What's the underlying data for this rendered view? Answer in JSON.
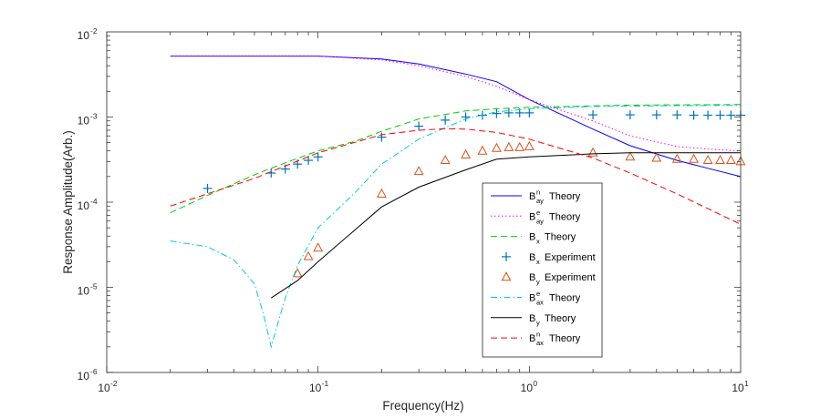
{
  "chart_data": {
    "type": "line",
    "title": "",
    "xlabel": "Frequency(Hz)",
    "ylabel": "Response Amplitude(Arb.)",
    "xscale": "log",
    "yscale": "log",
    "xlim": [
      0.01,
      10
    ],
    "ylim": [
      1e-06,
      0.01
    ],
    "grid": false,
    "legend_position": "lower-center",
    "x_ticks": [
      {
        "base": "10",
        "exp": "-2",
        "value": 0.01
      },
      {
        "base": "10",
        "exp": "-1",
        "value": 0.1
      },
      {
        "base": "10",
        "exp": "0",
        "value": 1
      },
      {
        "base": "10",
        "exp": "1",
        "value": 10
      }
    ],
    "y_ticks": [
      {
        "base": "10",
        "exp": "-6",
        "value": 1e-06
      },
      {
        "base": "10",
        "exp": "-5",
        "value": 1e-05
      },
      {
        "base": "10",
        "exp": "-4",
        "value": 0.0001
      },
      {
        "base": "10",
        "exp": "-3",
        "value": 0.001
      },
      {
        "base": "10",
        "exp": "-2",
        "value": 0.01
      }
    ],
    "series": [
      {
        "name": "B_ay^n Theory",
        "base": "B",
        "sup": "n",
        "sub": "ay",
        "suffix": "Theory",
        "style": "solid",
        "marker": "none",
        "color": "#0000ff",
        "x": [
          0.02,
          0.05,
          0.1,
          0.2,
          0.3,
          0.5,
          0.7,
          1,
          2,
          3,
          5,
          7,
          10
        ],
        "y": [
          0.0052,
          0.0052,
          0.0052,
          0.0048,
          0.0042,
          0.0032,
          0.0026,
          0.0016,
          0.00072,
          0.00046,
          0.00031,
          0.00025,
          0.0002
        ]
      },
      {
        "name": "B_ay^e Theory",
        "base": "B",
        "sup": "e",
        "sub": "ay",
        "suffix": "Theory",
        "style": "dotted",
        "marker": "none",
        "color": "#ff00ff",
        "x": [
          0.02,
          0.05,
          0.1,
          0.2,
          0.3,
          0.5,
          0.7,
          1,
          2,
          3,
          5,
          7,
          10
        ],
        "y": [
          0.0052,
          0.0052,
          0.0052,
          0.0047,
          0.004,
          0.003,
          0.0023,
          0.0016,
          0.0009,
          0.0006,
          0.00045,
          0.00042,
          0.0004
        ]
      },
      {
        "name": "B_x Theory",
        "base": "B",
        "sup": "",
        "sub": "x",
        "suffix": "Theory",
        "style": "dashed",
        "marker": "none",
        "color": "#00cc00",
        "x": [
          0.02,
          0.03,
          0.05,
          0.07,
          0.1,
          0.15,
          0.2,
          0.3,
          0.5,
          0.7,
          1,
          2,
          3,
          5,
          10
        ],
        "y": [
          7.5e-05,
          0.00012,
          0.00021,
          0.00029,
          0.0004,
          0.00052,
          0.00068,
          0.00095,
          0.00118,
          0.00125,
          0.0013,
          0.00135,
          0.00138,
          0.00139,
          0.0014
        ]
      },
      {
        "name": "B_x Experiment",
        "base": "B",
        "sup": "",
        "sub": "x",
        "suffix": "Experiment",
        "style": "none",
        "marker": "plus",
        "color": "#0072bd",
        "x": [
          0.03,
          0.06,
          0.07,
          0.08,
          0.09,
          0.1,
          0.2,
          0.3,
          0.4,
          0.5,
          0.6,
          0.7,
          0.8,
          0.9,
          1,
          2,
          3,
          4,
          5,
          6,
          7,
          8,
          9,
          10
        ],
        "y": [
          0.000145,
          0.00022,
          0.000245,
          0.00028,
          0.00031,
          0.00034,
          0.00058,
          0.00078,
          0.00092,
          0.001,
          0.00105,
          0.0011,
          0.00112,
          0.00112,
          0.00112,
          0.00106,
          0.00106,
          0.00106,
          0.00106,
          0.00105,
          0.00105,
          0.00105,
          0.00105,
          0.00105
        ]
      },
      {
        "name": "B_y Experiment",
        "base": "B",
        "sup": "",
        "sub": "y",
        "suffix": "Experiment",
        "style": "none",
        "marker": "triangle",
        "color": "#d95319",
        "x": [
          0.08,
          0.09,
          0.1,
          0.2,
          0.3,
          0.4,
          0.5,
          0.6,
          0.7,
          0.8,
          0.9,
          1,
          2,
          3,
          4,
          5,
          6,
          7,
          8,
          9,
          10
        ],
        "y": [
          1.45e-05,
          2.3e-05,
          2.9e-05,
          0.000125,
          0.00023,
          0.00031,
          0.00036,
          0.0004,
          0.00043,
          0.00044,
          0.00044,
          0.00045,
          0.00038,
          0.00034,
          0.00033,
          0.00032,
          0.00032,
          0.00031,
          0.00031,
          0.00031,
          0.0003
        ]
      },
      {
        "name": "B_ax^e Theory",
        "base": "B",
        "sup": "e",
        "sub": "ax",
        "suffix": "Theory",
        "style": "dashdot",
        "marker": "none",
        "color": "#00cccc",
        "x": [
          0.02,
          0.03,
          0.04,
          0.05,
          0.055,
          0.06,
          0.065,
          0.07,
          0.08,
          0.1,
          0.15,
          0.2,
          0.3,
          0.5,
          0.7,
          1,
          2,
          5,
          10
        ],
        "y": [
          3.5e-05,
          3e-05,
          2.1e-05,
          1.1e-05,
          5e-06,
          2e-06,
          4e-06,
          7.5e-06,
          1.8e-05,
          5e-05,
          0.00013,
          0.00028,
          0.00055,
          0.00095,
          0.00115,
          0.00125,
          0.00133,
          0.00136,
          0.00137
        ]
      },
      {
        "name": "B_y Theory",
        "base": "B",
        "sup": "",
        "sub": "y",
        "suffix": "Theory",
        "style": "solid",
        "marker": "none",
        "color": "#000000",
        "x": [
          0.06,
          0.08,
          0.1,
          0.2,
          0.3,
          0.5,
          0.7,
          1,
          2,
          3,
          5,
          10
        ],
        "y": [
          7.5e-06,
          1.2e-05,
          2e-05,
          8.8e-05,
          0.00015,
          0.00024,
          0.00032,
          0.00034,
          0.00037,
          0.00038,
          0.00038,
          0.00038
        ]
      },
      {
        "name": "B_ax^n Theory",
        "base": "B",
        "sup": "n",
        "sub": "ax",
        "suffix": "Theory",
        "style": "dashed",
        "marker": "none",
        "color": "#ff0000",
        "x": [
          0.02,
          0.05,
          0.1,
          0.2,
          0.3,
          0.4,
          0.5,
          0.7,
          1,
          2,
          3,
          5,
          10
        ],
        "y": [
          9e-05,
          0.00019,
          0.00038,
          0.00062,
          0.0007,
          0.00073,
          0.00072,
          0.00066,
          0.00055,
          0.00033,
          0.00022,
          0.000125,
          5.5e-05
        ]
      }
    ]
  }
}
